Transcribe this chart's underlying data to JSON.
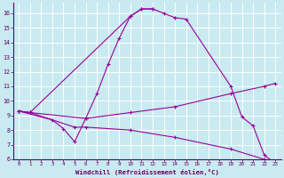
{
  "xlabel": "Windchill (Refroidissement éolien,°C)",
  "background_color": "#c8eaf0",
  "grid_color": "#ffffff",
  "line_color": "#990099",
  "xlim": [
    -0.5,
    23.5
  ],
  "ylim": [
    6,
    16.7
  ],
  "xticks": [
    0,
    1,
    2,
    3,
    4,
    5,
    6,
    7,
    8,
    9,
    10,
    11,
    12,
    13,
    14,
    15,
    16,
    17,
    18,
    19,
    20,
    21,
    22,
    23
  ],
  "yticks": [
    6,
    7,
    8,
    9,
    10,
    11,
    12,
    13,
    14,
    15,
    16
  ],
  "series": [
    {
      "x": [
        0,
        1,
        10,
        11,
        12,
        13,
        14,
        15,
        19,
        20,
        21,
        22,
        23
      ],
      "y": [
        9.3,
        9.2,
        15.8,
        16.3,
        16.3,
        16.0,
        15.7,
        15.6,
        11.0,
        8.9,
        8.3,
        6.3,
        5.7
      ]
    },
    {
      "x": [
        0,
        3,
        4,
        5,
        6,
        7,
        8,
        9,
        10,
        11,
        12
      ],
      "y": [
        9.3,
        8.7,
        8.1,
        7.2,
        8.8,
        10.5,
        12.5,
        14.3,
        15.8,
        16.3,
        16.3
      ]
    },
    {
      "x": [
        0,
        1,
        6,
        10,
        14,
        19,
        22,
        23
      ],
      "y": [
        9.3,
        9.2,
        8.8,
        9.2,
        9.6,
        10.5,
        11.0,
        11.2
      ]
    },
    {
      "x": [
        0,
        1,
        5,
        6,
        10,
        14,
        19,
        22,
        23
      ],
      "y": [
        9.3,
        9.2,
        8.2,
        8.2,
        8.0,
        7.5,
        6.7,
        6.0,
        5.7
      ]
    }
  ]
}
